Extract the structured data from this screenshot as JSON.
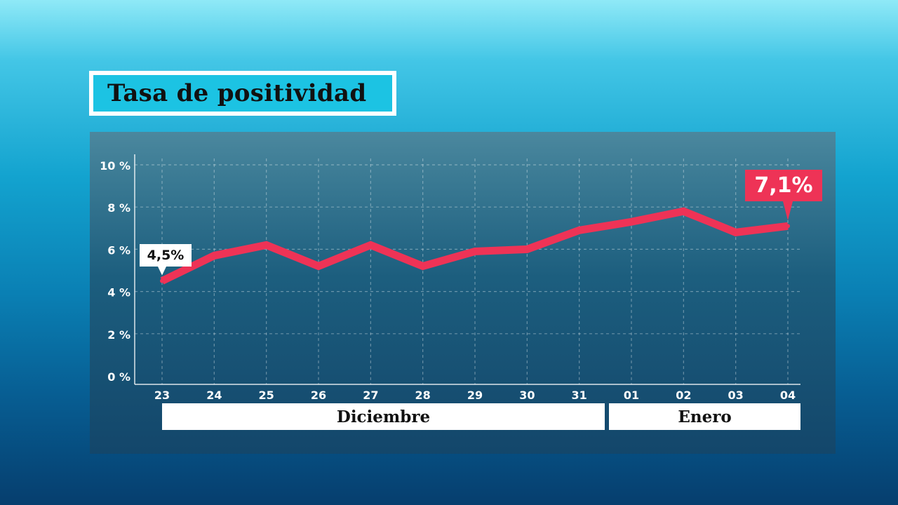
{
  "title": "Tasa de positividad",
  "chart_data": {
    "type": "line",
    "title": "Tasa de positividad",
    "xlabel": "",
    "ylabel": "",
    "categories": [
      "23",
      "24",
      "25",
      "26",
      "27",
      "28",
      "29",
      "30",
      "31",
      "01",
      "02",
      "03",
      "04"
    ],
    "months": [
      {
        "label": "Diciembre",
        "categories": [
          "23",
          "24",
          "25",
          "26",
          "27",
          "28",
          "29",
          "30",
          "31"
        ]
      },
      {
        "label": "Enero",
        "categories": [
          "01",
          "02",
          "03",
          "04"
        ]
      }
    ],
    "y_ticks": [
      "0 %",
      "2 %",
      "4 %",
      "6 %",
      "8 %",
      "10 %"
    ],
    "y_tick_values": [
      0,
      2,
      4,
      6,
      8,
      10
    ],
    "ylim": [
      0,
      10
    ],
    "grid": true,
    "series": [
      {
        "values": [
          4.5,
          5.7,
          6.2,
          5.2,
          6.2,
          5.2,
          5.9,
          6.0,
          6.9,
          7.3,
          7.8,
          6.8,
          7.1
        ],
        "color": "#ee3356"
      }
    ],
    "annotations": [
      {
        "label": "4,5%",
        "category": "23",
        "style": "white"
      },
      {
        "label": "7,1%",
        "category": "04",
        "style": "highlight"
      }
    ]
  },
  "colors": {
    "line": "#ee3356",
    "title_bg": "#1cc3e3",
    "callout_highlight": "#ee3356"
  }
}
